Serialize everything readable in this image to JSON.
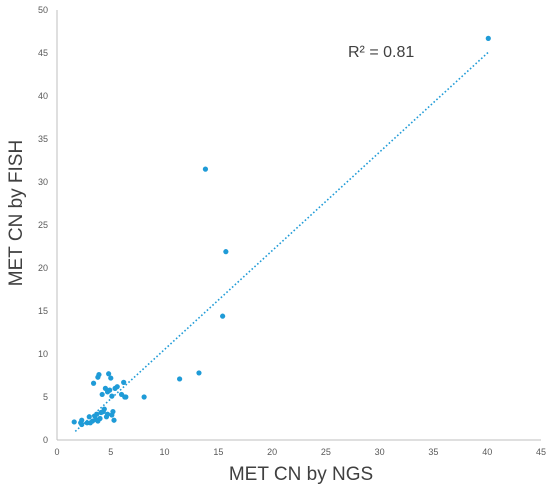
{
  "chart_data": {
    "type": "scatter",
    "xlabel": "MET CN by NGS",
    "ylabel": "MET CN by FISH",
    "xlim": [
      0,
      45
    ],
    "ylim": [
      0,
      50
    ],
    "xticks": [
      0,
      5,
      10,
      15,
      20,
      25,
      30,
      35,
      40,
      45
    ],
    "yticks": [
      0,
      5,
      10,
      15,
      20,
      25,
      30,
      35,
      40,
      45,
      50
    ],
    "grid": "none",
    "annotation": "R² = 0.81",
    "colors": {
      "points": "#1f9bd7",
      "trendline": "#1f9bd7",
      "axis": "#bfbfbf"
    },
    "series": [
      {
        "points": [
          [
            1.6,
            2.1
          ],
          [
            2.2,
            2.0
          ],
          [
            2.3,
            1.8
          ],
          [
            2.3,
            2.3
          ],
          [
            2.8,
            2.0
          ],
          [
            3.0,
            2.7
          ],
          [
            3.1,
            2.0
          ],
          [
            3.3,
            2.2
          ],
          [
            3.4,
            6.6
          ],
          [
            3.5,
            2.8
          ],
          [
            3.6,
            2.4
          ],
          [
            3.7,
            3.0
          ],
          [
            3.8,
            2.2
          ],
          [
            3.8,
            7.3
          ],
          [
            3.9,
            7.6
          ],
          [
            4.0,
            2.5
          ],
          [
            4.1,
            3.2
          ],
          [
            4.2,
            5.3
          ],
          [
            4.3,
            3.3
          ],
          [
            4.4,
            3.6
          ],
          [
            4.5,
            6.0
          ],
          [
            4.6,
            2.7
          ],
          [
            4.7,
            5.6
          ],
          [
            4.7,
            3.0
          ],
          [
            4.8,
            7.7
          ],
          [
            4.9,
            5.8
          ],
          [
            5.0,
            7.2
          ],
          [
            5.1,
            2.9
          ],
          [
            5.1,
            5.1
          ],
          [
            5.2,
            3.3
          ],
          [
            5.3,
            2.3
          ],
          [
            5.4,
            6.0
          ],
          [
            5.6,
            6.2
          ],
          [
            6.0,
            5.3
          ],
          [
            6.2,
            6.7
          ],
          [
            6.3,
            5.0
          ],
          [
            6.4,
            5.0
          ],
          [
            8.1,
            5.0
          ],
          [
            11.4,
            7.1
          ],
          [
            13.2,
            7.8
          ],
          [
            13.8,
            31.5
          ],
          [
            15.4,
            14.4
          ],
          [
            15.7,
            21.9
          ],
          [
            40.1,
            46.7
          ]
        ]
      }
    ],
    "trendline": {
      "type": "linear",
      "x": [
        1.7,
        40.2
      ],
      "y": [
        1.0,
        45.2
      ]
    }
  }
}
